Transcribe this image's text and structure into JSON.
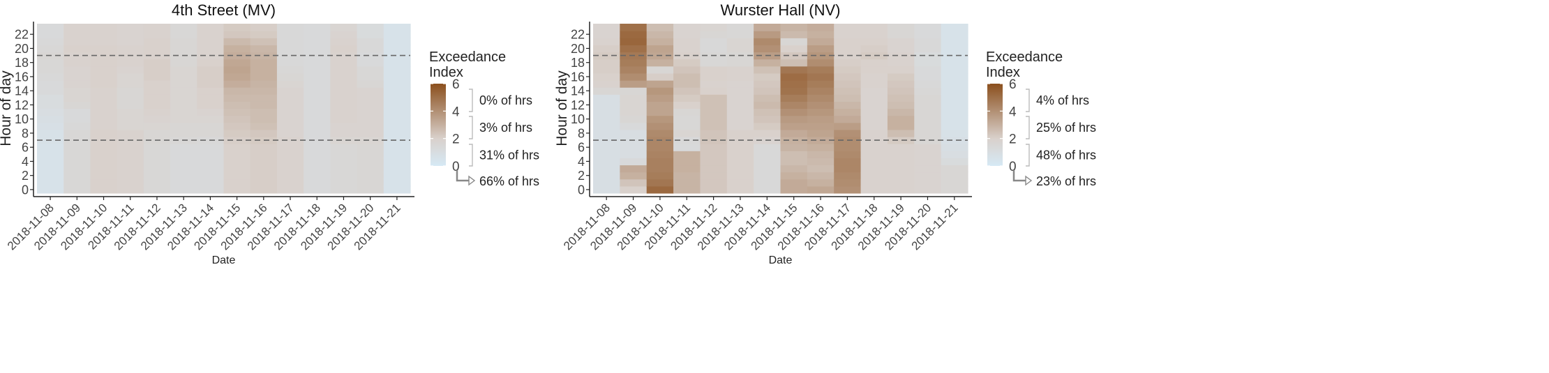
{
  "chart_data": [
    {
      "type": "heatmap",
      "title": "4th Street (MV)",
      "xlabel": "Date",
      "ylabel": "Hour of day",
      "x_categories": [
        "2018-11-08",
        "2018-11-09",
        "2018-11-10",
        "2018-11-11",
        "2018-11-12",
        "2018-11-13",
        "2018-11-14",
        "2018-11-15",
        "2018-11-16",
        "2018-11-17",
        "2018-11-18",
        "2018-11-19",
        "2018-11-20",
        "2018-11-21"
      ],
      "y_ticks": [
        0,
        2,
        4,
        6,
        8,
        10,
        12,
        14,
        16,
        18,
        20,
        22
      ],
      "y_range": [
        0,
        23
      ],
      "hlines": [
        7,
        19
      ],
      "legend": {
        "title": "Exceedance Index",
        "range": [
          0,
          6
        ],
        "ticks": [
          0,
          2,
          4,
          6
        ],
        "low_color": "#d6e9f5",
        "mid_color": "#d9d1cc",
        "high_color": "#8b4f1d",
        "bins": [
          "0% of hrs",
          "3% of hrs",
          "31% of hrs",
          "66% of hrs"
        ]
      },
      "values": [
        [
          0.6,
          0.6,
          0.6,
          0.6,
          0.6,
          0.6,
          0.6,
          0.7,
          0.7,
          0.8,
          0.9,
          1.0,
          1.1,
          1.1,
          1.3,
          1.3,
          1.4,
          1.5,
          1.5,
          1.6,
          1.5,
          1.4,
          1.3,
          1.3
        ],
        [
          1.5,
          1.5,
          1.5,
          1.5,
          1.5,
          1.5,
          1.5,
          1.5,
          1.5,
          1.4,
          1.3,
          1.3,
          1.6,
          1.7,
          1.7,
          1.8,
          1.8,
          1.8,
          1.9,
          1.9,
          2.0,
          1.9,
          1.9,
          1.9
        ],
        [
          2.0,
          2.0,
          2.0,
          2.0,
          2.0,
          2.0,
          2.0,
          2.0,
          2.0,
          1.9,
          1.9,
          1.9,
          1.9,
          1.9,
          1.9,
          2.0,
          2.0,
          2.0,
          2.0,
          2.0,
          2.0,
          1.9,
          1.9,
          1.9
        ],
        [
          1.9,
          1.9,
          1.9,
          1.9,
          1.9,
          1.9,
          1.9,
          1.9,
          1.9,
          1.7,
          1.7,
          1.7,
          1.6,
          1.6,
          1.6,
          1.7,
          1.7,
          1.8,
          1.9,
          1.9,
          1.9,
          1.8,
          1.8,
          1.8
        ],
        [
          1.5,
          1.5,
          1.5,
          1.5,
          1.5,
          1.5,
          1.5,
          1.6,
          1.6,
          1.7,
          1.8,
          1.9,
          2.0,
          2.0,
          2.0,
          2.0,
          2.1,
          2.1,
          2.1,
          2.0,
          2.0,
          2.0,
          1.9,
          1.9
        ],
        [
          1.3,
          1.3,
          1.3,
          1.3,
          1.3,
          1.3,
          1.3,
          1.5,
          1.6,
          1.6,
          1.7,
          1.7,
          1.7,
          1.7,
          1.7,
          1.7,
          1.7,
          1.7,
          1.6,
          1.6,
          1.6,
          1.6,
          1.5,
          1.5
        ],
        [
          1.3,
          1.3,
          1.3,
          1.3,
          1.3,
          1.3,
          1.3,
          1.4,
          1.6,
          1.6,
          1.7,
          1.8,
          2.0,
          2.0,
          2.0,
          2.1,
          2.1,
          2.1,
          2.0,
          1.9,
          1.9,
          1.9,
          1.9,
          1.9
        ],
        [
          2.0,
          2.0,
          2.0,
          2.0,
          2.0,
          2.0,
          2.0,
          2.1,
          2.2,
          2.3,
          2.4,
          2.5,
          2.6,
          2.7,
          2.8,
          3.1,
          3.3,
          3.4,
          3.3,
          3.1,
          3.0,
          2.7,
          2.3,
          2.2
        ],
        [
          2.1,
          2.1,
          2.1,
          2.1,
          2.1,
          2.1,
          2.1,
          2.2,
          2.3,
          2.5,
          2.6,
          2.6,
          2.7,
          2.7,
          2.8,
          2.9,
          3.0,
          3.0,
          3.0,
          2.9,
          2.8,
          2.5,
          2.2,
          2.1
        ],
        [
          1.9,
          1.9,
          1.9,
          1.9,
          1.9,
          1.9,
          1.9,
          1.9,
          1.8,
          1.8,
          1.8,
          1.8,
          1.8,
          1.8,
          1.8,
          1.7,
          1.6,
          1.5,
          1.4,
          1.4,
          1.4,
          1.4,
          1.4,
          1.4
        ],
        [
          1.3,
          1.3,
          1.3,
          1.3,
          1.3,
          1.3,
          1.3,
          1.3,
          1.3,
          1.3,
          1.3,
          1.3,
          1.3,
          1.3,
          1.3,
          1.3,
          1.3,
          1.3,
          1.3,
          1.3,
          1.3,
          1.3,
          1.3,
          1.3
        ],
        [
          1.5,
          1.5,
          1.5,
          1.5,
          1.5,
          1.5,
          1.5,
          1.7,
          1.8,
          1.8,
          1.9,
          1.9,
          1.9,
          1.9,
          1.9,
          1.9,
          1.9,
          1.9,
          1.9,
          1.9,
          2.0,
          1.9,
          1.8,
          1.7
        ],
        [
          1.6,
          1.6,
          1.6,
          1.6,
          1.6,
          1.6,
          1.6,
          1.7,
          1.8,
          1.8,
          1.8,
          1.8,
          1.8,
          1.8,
          1.8,
          1.6,
          1.5,
          1.5,
          1.3,
          1.3,
          1.4,
          1.4,
          1.2,
          1.2
        ],
        [
          0.6,
          0.6,
          0.6,
          0.6,
          0.6,
          0.6,
          0.6,
          0.6,
          0.6,
          0.6,
          0.6,
          0.6,
          0.6,
          0.6,
          0.6,
          0.6,
          0.6,
          0.6,
          0.6,
          0.6,
          0.6,
          0.6,
          0.6,
          0.6
        ]
      ]
    },
    {
      "type": "heatmap",
      "title": "Wurster Hall (NV)",
      "xlabel": "Date",
      "ylabel": "Hour of day",
      "x_categories": [
        "2018-11-08",
        "2018-11-09",
        "2018-11-10",
        "2018-11-11",
        "2018-11-12",
        "2018-11-13",
        "2018-11-14",
        "2018-11-15",
        "2018-11-16",
        "2018-11-17",
        "2018-11-18",
        "2018-11-19",
        "2018-11-20",
        "2018-11-21"
      ],
      "y_ticks": [
        0,
        2,
        4,
        6,
        8,
        10,
        12,
        14,
        16,
        18,
        20,
        22
      ],
      "y_range": [
        0,
        23
      ],
      "hlines": [
        7,
        19
      ],
      "legend": {
        "title": "Exceedance Index",
        "range": [
          0,
          6
        ],
        "ticks": [
          0,
          2,
          4,
          6
        ],
        "low_color": "#d6e9f5",
        "mid_color": "#d9d1cc",
        "high_color": "#8b4f1d",
        "bins": [
          "4% of hrs",
          "25% of hrs",
          "48% of hrs",
          "23% of hrs"
        ]
      },
      "values": [
        [
          0.9,
          0.9,
          0.9,
          0.9,
          0.9,
          0.9,
          0.9,
          0.9,
          0.9,
          0.9,
          0.9,
          0.9,
          0.9,
          0.9,
          1.6,
          1.9,
          2.0,
          2.1,
          2.1,
          2.2,
          2.1,
          1.9,
          1.8,
          1.8
        ],
        [
          2.0,
          2.4,
          3.0,
          3.2,
          1.3,
          1.0,
          1.0,
          1.0,
          1.0,
          1.3,
          1.6,
          1.7,
          1.7,
          1.7,
          1.6,
          3.6,
          4.1,
          4.4,
          4.6,
          4.7,
          5.0,
          5.3,
          5.2,
          5.0
        ],
        [
          5.2,
          4.8,
          4.6,
          4.5,
          4.5,
          4.4,
          4.3,
          4.3,
          4.2,
          4.0,
          3.8,
          3.4,
          3.4,
          3.6,
          3.8,
          3.4,
          2.1,
          1.6,
          3.0,
          3.3,
          3.4,
          3.0,
          2.8,
          2.6
        ],
        [
          2.9,
          2.9,
          2.9,
          3.0,
          3.0,
          3.0,
          1.3,
          1.4,
          1.7,
          1.5,
          1.5,
          1.6,
          2.0,
          2.2,
          2.4,
          2.6,
          2.6,
          2.4,
          2.2,
          2.0,
          1.9,
          1.9,
          1.8,
          1.8
        ],
        [
          2.3,
          2.3,
          2.3,
          2.3,
          2.3,
          2.3,
          2.3,
          2.4,
          2.4,
          2.5,
          2.5,
          2.5,
          2.5,
          2.5,
          2.0,
          1.9,
          2.0,
          2.0,
          1.5,
          1.5,
          1.4,
          1.4,
          1.6,
          1.7
        ],
        [
          2.0,
          2.0,
          2.0,
          2.0,
          2.0,
          2.0,
          2.0,
          2.0,
          2.0,
          1.8,
          1.8,
          1.8,
          1.8,
          1.8,
          1.8,
          1.8,
          1.9,
          1.9,
          1.6,
          1.6,
          1.7,
          1.7,
          1.5,
          1.5
        ],
        [
          1.4,
          1.4,
          1.4,
          1.4,
          1.4,
          1.4,
          1.4,
          1.8,
          2.0,
          2.2,
          2.4,
          2.5,
          2.7,
          2.6,
          2.4,
          2.3,
          2.2,
          2.5,
          3.0,
          3.6,
          4.0,
          4.2,
          3.7,
          3.2
        ],
        [
          3.2,
          3.2,
          3.0,
          2.8,
          2.6,
          2.6,
          2.9,
          3.0,
          3.2,
          3.5,
          3.7,
          4.0,
          4.3,
          4.6,
          4.9,
          5.0,
          5.1,
          4.8,
          2.6,
          2.3,
          2.0,
          1.6,
          2.7,
          2.9
        ],
        [
          3.3,
          3.0,
          2.8,
          2.6,
          2.7,
          2.8,
          3.0,
          3.2,
          3.4,
          3.5,
          3.6,
          3.8,
          4.0,
          4.2,
          4.4,
          4.6,
          4.8,
          4.6,
          4.1,
          3.8,
          3.6,
          3.2,
          3.0,
          3.1
        ],
        [
          4.0,
          4.1,
          4.2,
          4.3,
          4.3,
          4.2,
          4.1,
          4.1,
          4.0,
          3.6,
          3.2,
          3.0,
          2.8,
          2.6,
          2.5,
          2.4,
          2.3,
          2.2,
          2.1,
          2.0,
          2.0,
          2.0,
          1.9,
          1.9
        ],
        [
          1.9,
          1.9,
          1.9,
          1.9,
          1.9,
          1.9,
          1.9,
          1.9,
          1.9,
          1.8,
          1.8,
          1.8,
          1.8,
          1.8,
          1.8,
          1.9,
          1.9,
          2.0,
          2.0,
          2.2,
          2.1,
          2.0,
          1.9,
          1.9
        ],
        [
          1.9,
          1.9,
          1.9,
          1.9,
          1.9,
          1.9,
          1.9,
          2.2,
          2.6,
          3.0,
          3.0,
          2.8,
          2.6,
          2.5,
          2.4,
          2.3,
          2.2,
          2.0,
          1.9,
          1.9,
          1.8,
          1.8,
          1.6,
          1.6
        ],
        [
          1.8,
          1.8,
          1.8,
          1.8,
          1.8,
          1.8,
          1.8,
          1.6,
          1.6,
          1.6,
          1.6,
          1.6,
          1.6,
          1.6,
          1.5,
          1.4,
          1.3,
          1.3,
          1.2,
          1.2,
          1.4,
          1.4,
          1.3,
          1.3
        ],
        [
          1.6,
          1.6,
          1.6,
          1.6,
          1.2,
          1.0,
          0.9,
          0.8,
          0.7,
          0.6,
          0.6,
          0.6,
          0.6,
          0.6,
          0.6,
          0.6,
          0.6,
          0.6,
          0.6,
          0.6,
          0.6,
          0.6,
          0.6,
          0.6
        ]
      ]
    }
  ]
}
